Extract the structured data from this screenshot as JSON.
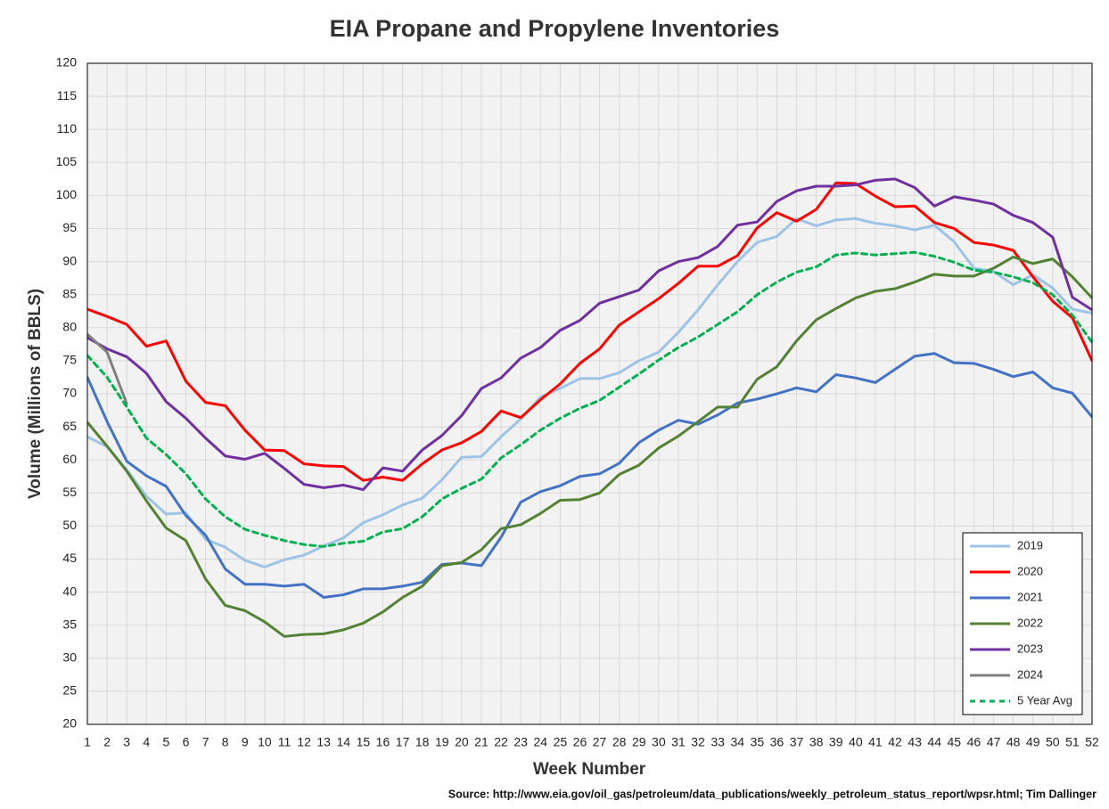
{
  "chart_data": {
    "type": "line",
    "title": "EIA Propane and Propylene Inventories",
    "x_label": "Week Number",
    "y_label": "Volume (Millions of BBLS)",
    "source": "Source: http://www.eia.gov/oil_gas/petroleum/data_publications/weekly_petroleum_status_report/wpsr.html; Tim Dallinger",
    "x": [
      1,
      2,
      3,
      4,
      5,
      6,
      7,
      8,
      9,
      10,
      11,
      12,
      13,
      14,
      15,
      16,
      17,
      18,
      19,
      20,
      21,
      22,
      23,
      24,
      25,
      26,
      27,
      28,
      29,
      30,
      31,
      32,
      33,
      34,
      35,
      36,
      37,
      38,
      39,
      40,
      41,
      42,
      43,
      44,
      45,
      46,
      47,
      48,
      49,
      50,
      51,
      52
    ],
    "xlim": [
      1,
      52
    ],
    "xticks": [
      1,
      2,
      3,
      4,
      5,
      6,
      7,
      8,
      9,
      10,
      11,
      12,
      13,
      14,
      15,
      16,
      17,
      18,
      19,
      20,
      21,
      22,
      23,
      24,
      25,
      26,
      27,
      28,
      29,
      30,
      31,
      32,
      33,
      34,
      35,
      36,
      37,
      38,
      39,
      40,
      41,
      42,
      43,
      44,
      45,
      46,
      47,
      48,
      49,
      50,
      51,
      52
    ],
    "ylim": [
      20,
      120
    ],
    "yticks": [
      20,
      25,
      30,
      35,
      40,
      45,
      50,
      55,
      60,
      65,
      70,
      75,
      80,
      85,
      90,
      95,
      100,
      105,
      110,
      115,
      120
    ],
    "grid": true,
    "legend": "lower right",
    "series": [
      {
        "name": "2019",
        "color": "#9dc3e6",
        "style": "solid",
        "values": [
          63.5,
          62,
          58.5,
          54.5,
          51.8,
          52,
          48,
          46.8,
          44.8,
          43.8,
          44.9,
          45.6,
          47,
          48.2,
          50.5,
          51.7,
          53.2,
          54.2,
          57,
          60.4,
          60.5,
          63.5,
          66.2,
          69.5,
          70.8,
          72.3,
          72.3,
          73.2,
          75,
          76.3,
          79.3,
          82.7,
          86.5,
          90,
          92.9,
          93.8,
          96.5,
          95.4,
          96.3,
          96.5,
          95.8,
          95.4,
          94.8,
          95.5,
          93,
          89,
          88.5,
          86.5,
          88,
          86,
          82.8,
          82.2
        ]
      },
      {
        "name": "2020",
        "color": "#ff0000",
        "style": "solid",
        "values": [
          82.8,
          81.7,
          80.5,
          77.2,
          78,
          71.9,
          68.7,
          68.2,
          64.5,
          61.5,
          61.4,
          59.4,
          59.1,
          59,
          56.9,
          57.4,
          56.9,
          59.4,
          61.5,
          62.6,
          64.3,
          67.4,
          66.4,
          69.1,
          71.5,
          74.6,
          76.8,
          80.4,
          82.4,
          84.4,
          86.7,
          89.3,
          89.3,
          90.9,
          95.1,
          97.4,
          96.1,
          97.9,
          101.9,
          101.8,
          99.9,
          98.3,
          98.4,
          95.9,
          95,
          92.9,
          92.5,
          91.7,
          87.7,
          84,
          81.5,
          75
        ]
      },
      {
        "name": "2021",
        "color": "#4472c4",
        "style": "solid",
        "values": [
          72.5,
          65.8,
          59.8,
          57.6,
          56,
          51.6,
          48.6,
          43.5,
          41.2,
          41.2,
          40.9,
          41.2,
          39.2,
          39.6,
          40.5,
          40.5,
          40.9,
          41.5,
          44.2,
          44.4,
          44,
          48.3,
          53.6,
          55.2,
          56.1,
          57.5,
          57.9,
          59.5,
          62.6,
          64.5,
          66,
          65.4,
          66.8,
          68.6,
          69.2,
          70,
          70.9,
          70.3,
          72.9,
          72.4,
          71.7,
          73.7,
          75.7,
          76.1,
          74.7,
          74.6,
          73.7,
          72.6,
          73.3,
          70.9,
          70.1,
          66.5
        ]
      },
      {
        "name": "2022",
        "color": "#548235",
        "style": "solid",
        "values": [
          65.7,
          62.1,
          58.3,
          53.8,
          49.7,
          47.8,
          42,
          38,
          37.2,
          35.5,
          33.3,
          33.6,
          33.7,
          34.3,
          35.3,
          37,
          39.2,
          40.9,
          44,
          44.5,
          46.4,
          49.6,
          50.2,
          51.9,
          53.9,
          54,
          55,
          57.8,
          59.2,
          61.8,
          63.6,
          65.8,
          68,
          68,
          72.2,
          74.1,
          78,
          81.2,
          82.9,
          84.5,
          85.5,
          85.9,
          86.9,
          88.1,
          87.8,
          87.8,
          89,
          90.7,
          89.7,
          90.4,
          87.7,
          84.5
        ]
      },
      {
        "name": "2023",
        "color": "#7030a0",
        "style": "solid",
        "values": [
          78.5,
          76.8,
          75.6,
          73.1,
          68.8,
          66.3,
          63.3,
          60.6,
          60.1,
          61,
          58.7,
          56.3,
          55.8,
          56.2,
          55.5,
          58.8,
          58.3,
          61.5,
          63.7,
          66.7,
          70.8,
          72.4,
          75.4,
          77,
          79.6,
          81.1,
          83.7,
          84.7,
          85.7,
          88.6,
          90,
          90.6,
          92.3,
          95.5,
          96,
          99.1,
          100.7,
          101.4,
          101.4,
          101.6,
          102.3,
          102.5,
          101.2,
          98.4,
          99.8,
          99.3,
          98.7,
          97,
          95.9,
          93.7,
          84.6,
          82.7
        ]
      },
      {
        "name": "2024",
        "color": "#7f7f7f",
        "style": "solid",
        "values": [
          79,
          76.3,
          68.5,
          null,
          null,
          null,
          null,
          null,
          null,
          null,
          null,
          null,
          null,
          null,
          null,
          null,
          null,
          null,
          null,
          null,
          null,
          null,
          null,
          null,
          null,
          null,
          null,
          null,
          null,
          null,
          null,
          null,
          null,
          null,
          null,
          null,
          null,
          null,
          null,
          null,
          null,
          null,
          null,
          null,
          null,
          null,
          null,
          null,
          null,
          null,
          null,
          null
        ]
      },
      {
        "name": "5 Year Avg",
        "color": "#00b050",
        "style": "dashed",
        "values": [
          75.8,
          72.5,
          68,
          63.3,
          60.8,
          57.9,
          54.1,
          51.4,
          49.5,
          48.6,
          47.8,
          47.2,
          46.9,
          47.4,
          47.7,
          49.1,
          49.6,
          51.4,
          54.1,
          55.7,
          57.1,
          60.3,
          62.3,
          64.5,
          66.3,
          67.8,
          69,
          71,
          73,
          75.1,
          77,
          78.6,
          80.5,
          82.4,
          85,
          86.9,
          88.4,
          89.2,
          91,
          91.3,
          91,
          91.2,
          91.4,
          90.8,
          89.9,
          88.7,
          88.4,
          87.7,
          86.8,
          85,
          81.9,
          77.8
        ]
      }
    ]
  }
}
